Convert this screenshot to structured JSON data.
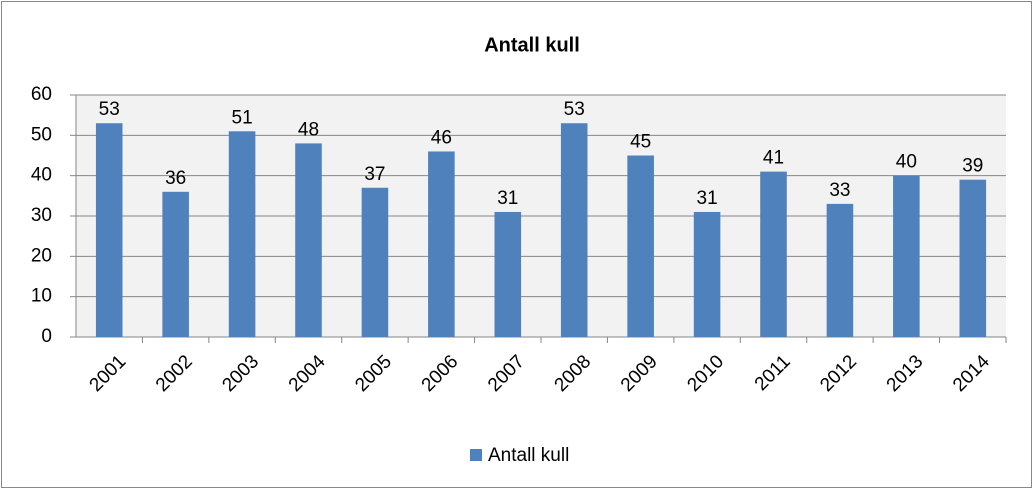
{
  "chart_data": {
    "type": "bar",
    "title": "Antall kull",
    "categories": [
      "2001",
      "2002",
      "2003",
      "2004",
      "2005",
      "2006",
      "2007",
      "2008",
      "2009",
      "2010",
      "2011",
      "2012",
      "2013",
      "2014"
    ],
    "series": [
      {
        "name": "Antall kull",
        "color": "#4f81bd",
        "values": [
          53,
          36,
          51,
          48,
          37,
          46,
          31,
          53,
          45,
          31,
          41,
          33,
          40,
          39
        ]
      }
    ],
    "ylim": [
      0,
      60
    ],
    "yticks": [
      0,
      10,
      20,
      30,
      40,
      50,
      60
    ],
    "grid": true,
    "legend": "bottom"
  }
}
